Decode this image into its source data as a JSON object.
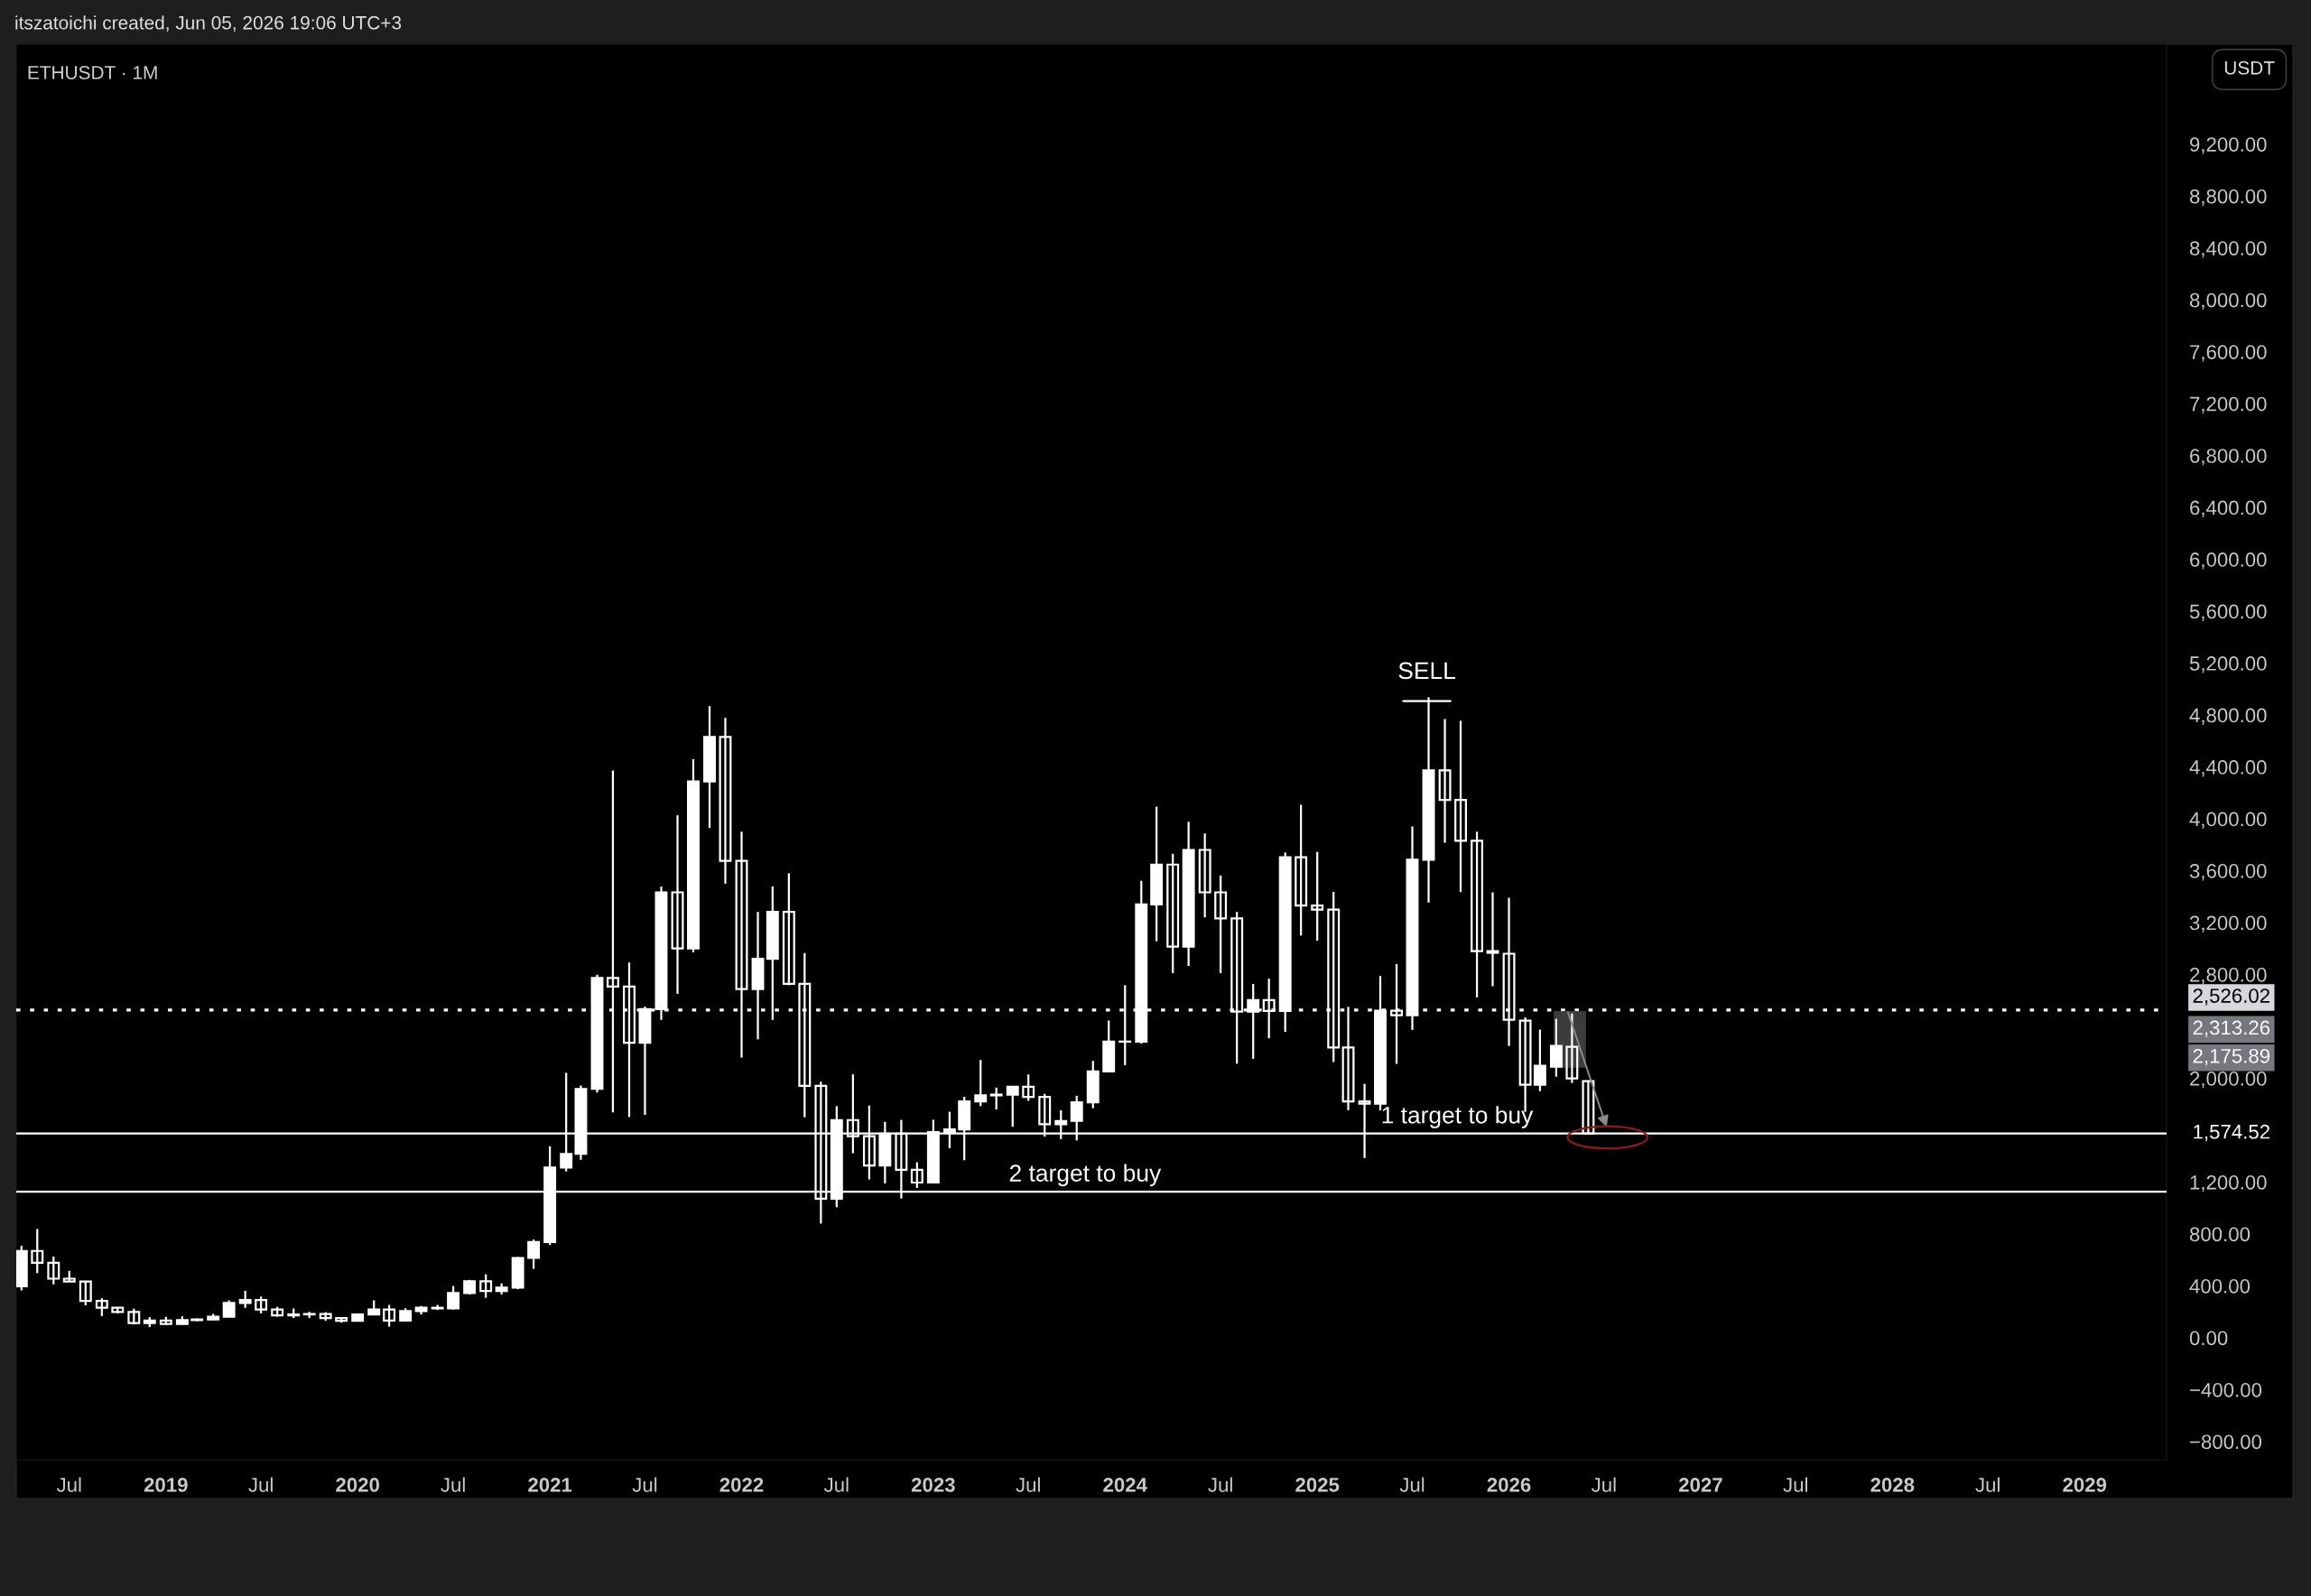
{
  "chart_data": {
    "type": "candlestick",
    "title": "ETHUSDT · 1M",
    "color": "#ffffff",
    "x": [
      "2018-04",
      "2018-05",
      "2018-06",
      "2018-07",
      "2018-08",
      "2018-09",
      "2018-10",
      "2018-11",
      "2018-12",
      "2019-01",
      "2019-02",
      "2019-03",
      "2019-04",
      "2019-05",
      "2019-06",
      "2019-07",
      "2019-08",
      "2019-09",
      "2019-10",
      "2019-11",
      "2019-12",
      "2020-01",
      "2020-02",
      "2020-03",
      "2020-04",
      "2020-05",
      "2020-06",
      "2020-07",
      "2020-08",
      "2020-09",
      "2020-10",
      "2020-11",
      "2020-12",
      "2021-01",
      "2021-02",
      "2021-03",
      "2021-04",
      "2021-05",
      "2021-06",
      "2021-07",
      "2021-08",
      "2021-09",
      "2021-10",
      "2021-11",
      "2021-12",
      "2022-01",
      "2022-02",
      "2022-03",
      "2022-04",
      "2022-05",
      "2022-06",
      "2022-07",
      "2022-08",
      "2022-09",
      "2022-10",
      "2022-11",
      "2022-12",
      "2023-01",
      "2023-02",
      "2023-03",
      "2023-04",
      "2023-05",
      "2023-06",
      "2023-07",
      "2023-08",
      "2023-09",
      "2023-10",
      "2023-11",
      "2023-12",
      "2024-01",
      "2024-02",
      "2024-03",
      "2024-04",
      "2024-05",
      "2024-06",
      "2024-07",
      "2024-08",
      "2024-09",
      "2024-10",
      "2024-11",
      "2024-12",
      "2025-01",
      "2025-02",
      "2025-03",
      "2025-04",
      "2025-05",
      "2025-06",
      "2025-07",
      "2025-08",
      "2025-09",
      "2025-10",
      "2025-11",
      "2025-12",
      "2026-01",
      "2026-02",
      "2026-03",
      "2026-04",
      "2026-05",
      "2026-06"
    ],
    "ohlc": [
      [
        397,
        708,
        365,
        669
      ],
      [
        669,
        838,
        498,
        577
      ],
      [
        577,
        626,
        412,
        455
      ],
      [
        455,
        515,
        430,
        433
      ],
      [
        433,
        435,
        250,
        283
      ],
      [
        283,
        305,
        167,
        232
      ],
      [
        232,
        234,
        188,
        198
      ],
      [
        198,
        224,
        102,
        113
      ],
      [
        113,
        159,
        82,
        133
      ],
      [
        133,
        161,
        100,
        107
      ],
      [
        107,
        165,
        102,
        136
      ],
      [
        136,
        149,
        127,
        141
      ],
      [
        141,
        184,
        137,
        162
      ],
      [
        162,
        288,
        159,
        268
      ],
      [
        268,
        362,
        230,
        291
      ],
      [
        291,
        317,
        188,
        218
      ],
      [
        218,
        238,
        162,
        172
      ],
      [
        172,
        225,
        152,
        180
      ],
      [
        180,
        199,
        152,
        183
      ],
      [
        183,
        197,
        131,
        152
      ],
      [
        152,
        154,
        116,
        130
      ],
      [
        130,
        187,
        127,
        180
      ],
      [
        180,
        288,
        179,
        218
      ],
      [
        218,
        253,
        86,
        133
      ],
      [
        133,
        227,
        130,
        206
      ],
      [
        206,
        245,
        179,
        231
      ],
      [
        231,
        253,
        214,
        226
      ],
      [
        226,
        399,
        218,
        345
      ],
      [
        345,
        446,
        333,
        435
      ],
      [
        435,
        489,
        308,
        360
      ],
      [
        360,
        419,
        334,
        386
      ],
      [
        386,
        623,
        374,
        615
      ],
      [
        615,
        757,
        531,
        737
      ],
      [
        737,
        1476,
        715,
        1312
      ],
      [
        1312,
        2042,
        1282,
        1417
      ],
      [
        1417,
        1944,
        1371,
        1918
      ],
      [
        1918,
        2798,
        1890,
        2773
      ],
      [
        2773,
        4372,
        1737,
        2707
      ],
      [
        2707,
        2892,
        1701,
        2274
      ],
      [
        2274,
        2552,
        1718,
        2533
      ],
      [
        2533,
        3477,
        2450,
        3433
      ],
      [
        3433,
        4027,
        2651,
        3001
      ],
      [
        3001,
        4460,
        2971,
        4288
      ],
      [
        4288,
        4868,
        3929,
        4631
      ],
      [
        4631,
        4778,
        3500,
        3676
      ],
      [
        3676,
        3900,
        2159,
        2688
      ],
      [
        2688,
        3282,
        2300,
        2920
      ],
      [
        2920,
        3479,
        2450,
        3282
      ],
      [
        3282,
        3580,
        2717,
        2727
      ],
      [
        2727,
        2965,
        1700,
        1942
      ],
      [
        1942,
        1973,
        880,
        1071
      ],
      [
        1071,
        1785,
        1006,
        1678
      ],
      [
        1678,
        2030,
        1422,
        1553
      ],
      [
        1553,
        1790,
        1220,
        1328
      ],
      [
        1328,
        1664,
        1190,
        1572
      ],
      [
        1572,
        1679,
        1073,
        1295
      ],
      [
        1295,
        1352,
        1155,
        1196
      ],
      [
        1196,
        1680,
        1190,
        1585
      ],
      [
        1585,
        1742,
        1461,
        1605
      ],
      [
        1605,
        1857,
        1368,
        1822
      ],
      [
        1822,
        2141,
        1785,
        1868
      ],
      [
        1868,
        1928,
        1760,
        1874
      ],
      [
        1874,
        1935,
        1626,
        1934
      ],
      [
        1934,
        2029,
        1826,
        1856
      ],
      [
        1856,
        1880,
        1550,
        1645
      ],
      [
        1645,
        1754,
        1531,
        1671
      ],
      [
        1671,
        1865,
        1521,
        1815
      ],
      [
        1815,
        2134,
        1769,
        2052
      ],
      [
        2052,
        2445,
        2049,
        2282
      ],
      [
        2282,
        2717,
        2101,
        2283
      ],
      [
        2283,
        3522,
        2266,
        3340
      ],
      [
        3340,
        4093,
        3056,
        3647
      ],
      [
        3647,
        3730,
        2810,
        3015
      ],
      [
        3015,
        3977,
        2865,
        3760
      ],
      [
        3760,
        3887,
        3240,
        3433
      ],
      [
        3433,
        3563,
        2810,
        3232
      ],
      [
        3232,
        3282,
        2112,
        2513
      ],
      [
        2513,
        2727,
        2150,
        2602
      ],
      [
        2602,
        2768,
        2308,
        2519
      ],
      [
        2519,
        3740,
        2357,
        3704
      ],
      [
        3704,
        4108,
        3100,
        3332
      ],
      [
        3332,
        3745,
        3060,
        3300
      ],
      [
        3300,
        3437,
        2125,
        2237
      ],
      [
        2237,
        2550,
        1754,
        1822
      ],
      [
        1822,
        1957,
        1385,
        1804
      ],
      [
        1804,
        2788,
        1752,
        2521
      ],
      [
        2521,
        2880,
        2111,
        2486
      ],
      [
        2486,
        3941,
        2373,
        3684
      ],
      [
        3684,
        4937,
        3354,
        4373
      ],
      [
        4373,
        4769,
        3815,
        4145
      ],
      [
        4145,
        4755,
        3435,
        3830
      ],
      [
        3830,
        3900,
        2623,
        2980
      ],
      [
        2980,
        3433,
        2709,
        2967
      ],
      [
        2960,
        3391,
        2249,
        2451
      ],
      [
        2444,
        2470,
        1741,
        1950
      ],
      [
        1950,
        2375,
        1901,
        2096
      ],
      [
        2089,
        2458,
        2012,
        2249
      ],
      [
        2242,
        2500,
        1964,
        1999
      ],
      [
        1978,
        1978,
        1574.52,
        1574.52
      ]
    ],
    "xlim": [
      "2018-03-22",
      "2029-06-06"
    ],
    "xticks": [
      {
        "value": "2018-07-01",
        "label": "Jul"
      },
      {
        "value": "2019-01-01",
        "label": "2019"
      },
      {
        "value": "2019-07-01",
        "label": "Jul"
      },
      {
        "value": "2020-01-01",
        "label": "2020"
      },
      {
        "value": "2020-07-01",
        "label": "Jul"
      },
      {
        "value": "2021-01-01",
        "label": "2021"
      },
      {
        "value": "2021-07-01",
        "label": "Jul"
      },
      {
        "value": "2022-01-01",
        "label": "2022"
      },
      {
        "value": "2022-07-01",
        "label": "Jul"
      },
      {
        "value": "2023-01-01",
        "label": "2023"
      },
      {
        "value": "2023-07-01",
        "label": "Jul"
      },
      {
        "value": "2024-01-01",
        "label": "2024"
      },
      {
        "value": "2024-07-01",
        "label": "Jul"
      },
      {
        "value": "2025-01-01",
        "label": "2025"
      },
      {
        "value": "2025-07-01",
        "label": "Jul"
      },
      {
        "value": "2026-01-01",
        "label": "2026"
      },
      {
        "value": "2026-07-01",
        "label": "Jul"
      },
      {
        "value": "2027-01-01",
        "label": "2027"
      },
      {
        "value": "2027-07-01",
        "label": "Jul"
      },
      {
        "value": "2028-01-01",
        "label": "2028"
      },
      {
        "value": "2028-07-01",
        "label": "Jul"
      },
      {
        "value": "2029-01-01",
        "label": "2029"
      }
    ],
    "ylim": [
      -940,
      9970
    ],
    "yticks": [
      {
        "value": -800,
        "label": "−800.00"
      },
      {
        "value": -400,
        "label": "−400.00"
      },
      {
        "value": 0,
        "label": "0.00"
      },
      {
        "value": 400,
        "label": "400.00"
      },
      {
        "value": 800,
        "label": "800.00"
      },
      {
        "value": 1200,
        "label": "1,200.00"
      },
      {
        "value": 2000,
        "label": "2,000.00"
      },
      {
        "value": 2800,
        "label": "2,800.00"
      },
      {
        "value": 3200,
        "label": "3,200.00"
      },
      {
        "value": 3600,
        "label": "3,600.00"
      },
      {
        "value": 4000,
        "label": "4,000.00"
      },
      {
        "value": 4400,
        "label": "4,400.00"
      },
      {
        "value": 4800,
        "label": "4,800.00"
      },
      {
        "value": 5200,
        "label": "5,200.00"
      },
      {
        "value": 5600,
        "label": "5,600.00"
      },
      {
        "value": 6000,
        "label": "6,000.00"
      },
      {
        "value": 6400,
        "label": "6,400.00"
      },
      {
        "value": 6800,
        "label": "6,800.00"
      },
      {
        "value": 7200,
        "label": "7,200.00"
      },
      {
        "value": 7600,
        "label": "7,600.00"
      },
      {
        "value": 8000,
        "label": "8,000.00"
      },
      {
        "value": 8400,
        "label": "8,400.00"
      },
      {
        "value": 8800,
        "label": "8,800.00"
      },
      {
        "value": 9200,
        "label": "9,200.00"
      }
    ],
    "ref_lines": [
      {
        "axis": "y",
        "value": 2526.02,
        "label": "2,526.02",
        "color": "#ffffff",
        "line_style": "dotted"
      },
      {
        "axis": "y",
        "value": 1574.52,
        "label": "1,574.52",
        "color": "#ffffff",
        "line_style": "solid"
      },
      {
        "axis": "y",
        "value": 1126,
        "color": "#ffffff",
        "line_style": "solid"
      }
    ],
    "annotations": [
      "itszatoichi created, Jun 05, 2026 19:06 UTC+3",
      "USDT",
      "SELL",
      "1 target to buy",
      "2 target to buy",
      "2,313.26",
      "2,175.89"
    ],
    "grid": false,
    "legend": false
  }
}
